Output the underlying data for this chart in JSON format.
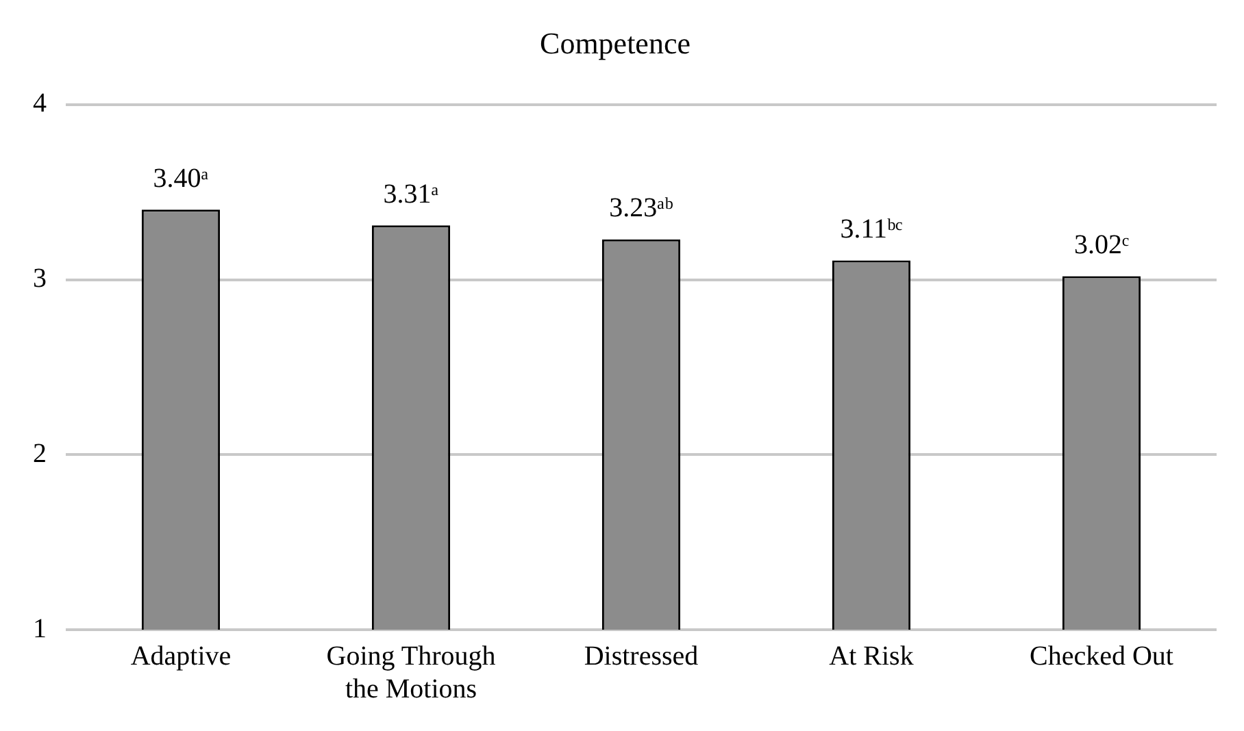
{
  "chart_data": {
    "type": "bar",
    "title": "Competence",
    "categories": [
      "Adaptive",
      "Going Through the Motions",
      "Distressed",
      "At Risk",
      "Checked Out"
    ],
    "values": [
      3.4,
      3.31,
      3.23,
      3.11,
      3.02
    ],
    "value_labels": [
      "3.40ᵃ",
      "3.31ᵃ",
      "3.23ᵃᵇ",
      "3.11ᵇᶜ",
      "3.02ᶜ"
    ],
    "color": "#8c8c8c",
    "ylim": [
      1,
      4
    ],
    "yticks": [
      1,
      2,
      3,
      4
    ],
    "grid": "y",
    "legend": false
  }
}
